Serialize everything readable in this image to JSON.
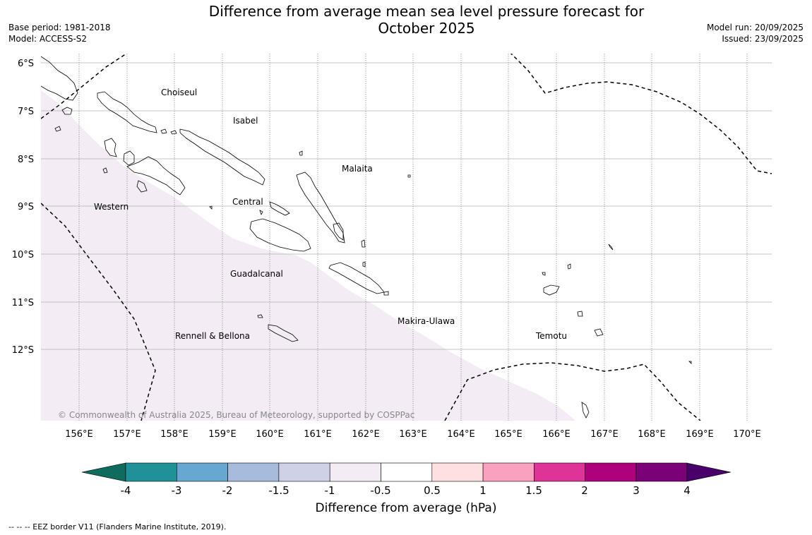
{
  "title": {
    "line1": "Difference from average mean sea level pressure forecast for",
    "line2": "October 2025"
  },
  "meta_left": {
    "base_period": "Base period: 1981-2018",
    "model": "Model: ACCESS-S2"
  },
  "meta_right": {
    "model_run": "Model run: 20/09/2025",
    "issued": "Issued: 23/09/2025"
  },
  "map": {
    "lat_labels": [
      "6°S",
      "7°S",
      "8°S",
      "9°S",
      "10°S",
      "11°S",
      "12°S"
    ],
    "lon_labels": [
      "156°E",
      "157°E",
      "158°E",
      "159°E",
      "160°E",
      "161°E",
      "162°E",
      "163°E",
      "164°E",
      "165°E",
      "166°E",
      "167°E",
      "168°E",
      "169°E",
      "170°E"
    ],
    "regions": [
      "Choiseul",
      "Isabel",
      "Malaita",
      "Western",
      "Central",
      "Guadalcanal",
      "Makira-Ulawa",
      "Rennell & Bellona",
      "Temotu"
    ],
    "copyright": "© Commonwealth of Australia 2025, Bureau of Meteorology, supported by COSPPac",
    "anomaly_fill_color": "#f3ecf5",
    "land_outline_color": "#000000",
    "grid_color": "#aaaaaa"
  },
  "colorbar": {
    "ticks": [
      "-4",
      "-3",
      "-2",
      "-1.5",
      "-1",
      "-0.5",
      "0.5",
      "1",
      "1.5",
      "2",
      "3",
      "4"
    ],
    "colors": [
      "#0e6b5e",
      "#1f9197",
      "#66a8d1",
      "#a7bcdc",
      "#cfd1e6",
      "#f3ecf5",
      "#ffffff",
      "#fee0e0",
      "#f9a1bf",
      "#de3497",
      "#ae017e",
      "#7a0177",
      "#49006a"
    ],
    "label": "Difference from average (hPa)"
  },
  "footer": "--  --  -- EEZ border V11 (Flanders Marine Institute, 2019)."
}
